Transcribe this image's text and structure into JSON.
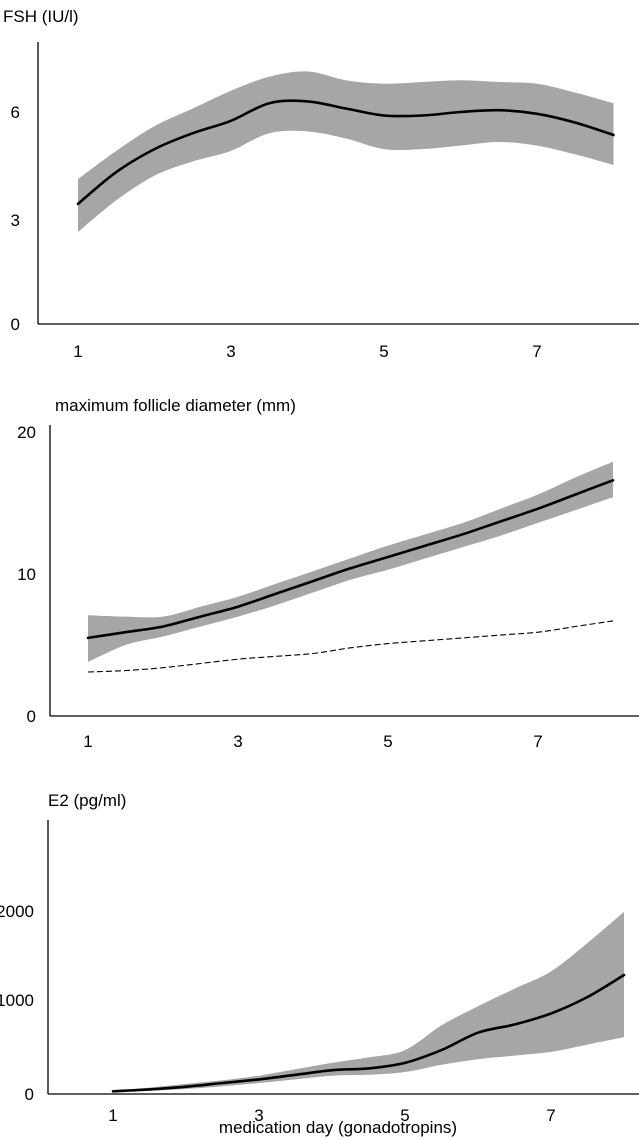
{
  "chart_data": [
    {
      "type": "area",
      "title": "FSH (IU/l)",
      "xlabel": "",
      "ylabel": "",
      "xlim": [
        1,
        8
      ],
      "ylim": [
        0,
        8
      ],
      "x_ticks": [
        1,
        3,
        5,
        7
      ],
      "y_ticks": [
        0,
        3,
        6
      ],
      "grid": false,
      "x": [
        1,
        1.5,
        2,
        2.5,
        3,
        3.5,
        4,
        4.5,
        5,
        5.5,
        6,
        6.5,
        7,
        7.5,
        8
      ],
      "series": [
        {
          "values": [
            3.4,
            4.3,
            4.95,
            5.4,
            5.75,
            6.25,
            6.3,
            6.1,
            5.9,
            5.9,
            6.0,
            6.05,
            5.95,
            5.7,
            5.35
          ]
        },
        {
          "role": "band_upper",
          "values": [
            4.1,
            4.9,
            5.6,
            6.1,
            6.6,
            7.0,
            7.15,
            6.9,
            6.8,
            6.85,
            6.9,
            6.85,
            6.8,
            6.55,
            6.25
          ]
        },
        {
          "role": "band_lower",
          "values": [
            2.6,
            3.5,
            4.2,
            4.6,
            4.9,
            5.4,
            5.45,
            5.25,
            4.95,
            4.95,
            5.05,
            5.15,
            5.05,
            4.8,
            4.5
          ]
        }
      ]
    },
    {
      "type": "area",
      "title": "maximum follicle diameter (mm)",
      "xlabel": "",
      "ylabel": "",
      "xlim": [
        1,
        8
      ],
      "ylim": [
        0,
        20
      ],
      "x_ticks": [
        1,
        3,
        5,
        7
      ],
      "y_ticks": [
        0,
        10,
        20
      ],
      "grid": false,
      "x": [
        1,
        1.5,
        2,
        2.5,
        3,
        3.5,
        4,
        4.5,
        5,
        5.5,
        6,
        6.5,
        7,
        7.5,
        8
      ],
      "series": [
        {
          "values": [
            5.5,
            5.9,
            6.3,
            7.0,
            7.7,
            8.6,
            9.5,
            10.4,
            11.2,
            12.0,
            12.8,
            13.7,
            14.6,
            15.6,
            16.6
          ]
        },
        {
          "role": "band_upper",
          "values": [
            7.1,
            7.0,
            7.0,
            7.7,
            8.4,
            9.3,
            10.2,
            11.1,
            12.0,
            12.8,
            13.6,
            14.6,
            15.6,
            16.8,
            17.9
          ]
        },
        {
          "role": "band_lower",
          "values": [
            3.8,
            5.0,
            5.6,
            6.3,
            7.0,
            7.8,
            8.7,
            9.6,
            10.3,
            11.1,
            11.9,
            12.7,
            13.6,
            14.5,
            15.4
          ]
        },
        {
          "style": "dashed",
          "values": [
            3.1,
            3.2,
            3.4,
            3.7,
            4.0,
            4.2,
            4.4,
            4.8,
            5.1,
            5.3,
            5.5,
            5.7,
            5.9,
            6.3,
            6.7
          ]
        }
      ]
    },
    {
      "type": "area",
      "title": "E2 (pg/ml)",
      "xlabel": "medication day (gonadotropins)",
      "ylabel": "",
      "xlim": [
        1,
        8
      ],
      "ylim": [
        0,
        2500
      ],
      "x_ticks": [
        1,
        3,
        5,
        7
      ],
      "y_ticks": [
        0,
        1000,
        2000
      ],
      "grid": false,
      "x": [
        1,
        1.5,
        2,
        2.5,
        3,
        3.5,
        4,
        4.5,
        5,
        5.5,
        6,
        6.5,
        7,
        7.5,
        8
      ],
      "series": [
        {
          "values": [
            30,
            50,
            80,
            120,
            160,
            210,
            260,
            280,
            340,
            480,
            670,
            760,
            880,
            1060,
            1300
          ]
        },
        {
          "role": "band_upper",
          "values": [
            40,
            70,
            110,
            150,
            200,
            270,
            340,
            400,
            480,
            750,
            960,
            1150,
            1340,
            1650,
            1990
          ]
        },
        {
          "role": "band_lower",
          "values": [
            20,
            35,
            55,
            85,
            120,
            160,
            200,
            210,
            240,
            320,
            380,
            420,
            460,
            540,
            620
          ]
        }
      ]
    }
  ]
}
